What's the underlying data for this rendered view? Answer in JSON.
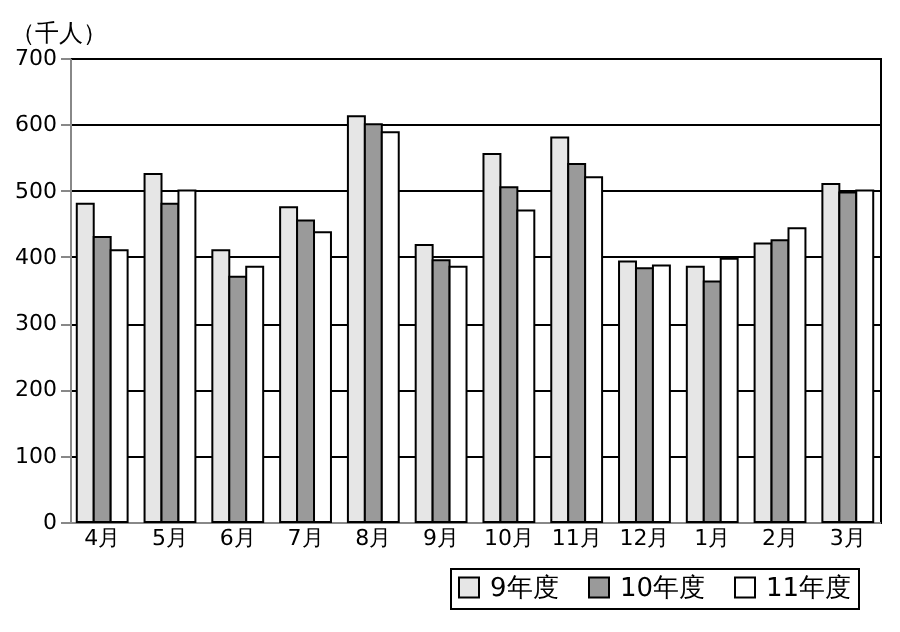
{
  "chart_data": {
    "type": "bar",
    "ylabel": "（千人）",
    "categories": [
      "4月",
      "5月",
      "6月",
      "7月",
      "8月",
      "9月",
      "10月",
      "11月",
      "12月",
      "1月",
      "2月",
      "3月"
    ],
    "series": [
      {
        "name": "9年度",
        "color": "#e6e6e6",
        "values": [
          480,
          525,
          410,
          475,
          612,
          418,
          555,
          580,
          393,
          385,
          420,
          510
        ]
      },
      {
        "name": "10年度",
        "color": "#9a9a9a",
        "values": [
          430,
          480,
          370,
          455,
          600,
          395,
          505,
          540,
          383,
          363,
          425,
          497
        ]
      },
      {
        "name": "11年度",
        "color": "#ffffff",
        "values": [
          410,
          500,
          385,
          437,
          588,
          385,
          470,
          520,
          387,
          397,
          443,
          500
        ]
      }
    ],
    "ylim": [
      0,
      700
    ],
    "yticks": [
      0,
      100,
      200,
      300,
      400,
      500,
      600,
      700
    ],
    "grid": "y",
    "legend": "bottom right"
  }
}
